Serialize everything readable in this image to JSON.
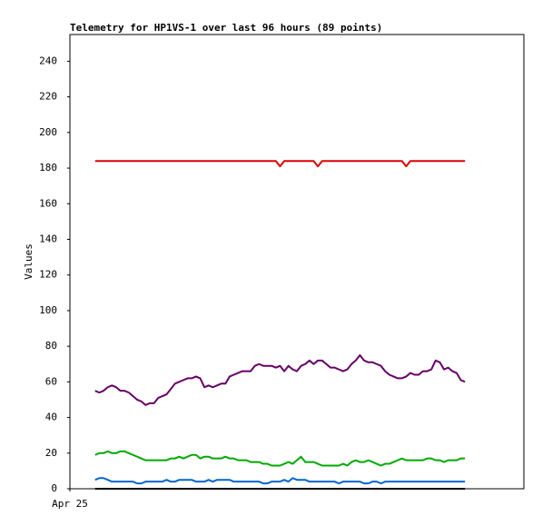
{
  "chart_data": {
    "type": "line",
    "title": "Telemetry for HP1VS-1 over last 96 hours (89 points)",
    "y_label": "Values",
    "x": [
      6,
      7,
      8,
      9,
      10,
      11,
      12,
      13,
      14,
      15,
      16,
      17,
      18,
      19,
      20,
      21,
      22,
      23,
      24,
      25,
      26,
      27,
      28,
      29,
      30,
      31,
      32,
      33,
      34,
      35,
      36,
      37,
      38,
      39,
      40,
      41,
      42,
      43,
      44,
      45,
      46,
      47,
      48,
      49,
      50,
      51,
      52,
      53,
      54,
      55,
      56,
      57,
      58,
      59,
      60,
      61,
      62,
      63,
      64,
      65,
      66,
      67,
      68,
      69,
      70,
      71,
      72,
      73,
      74,
      75,
      76,
      77,
      78,
      79,
      80,
      81,
      82,
      83,
      84,
      85,
      86,
      87,
      88,
      89,
      90,
      91,
      92,
      93,
      94
    ],
    "xlim": [
      0,
      108
    ],
    "xticks": [
      {
        "value": 0,
        "label": "Apr 25"
      }
    ],
    "ylim": [
      0,
      255
    ],
    "yticks": [
      0,
      20,
      40,
      60,
      80,
      100,
      120,
      140,
      160,
      180,
      200,
      220,
      240
    ],
    "series": [
      {
        "color": "#dd0000",
        "values": [
          184,
          184,
          184,
          184,
          184,
          184,
          184,
          184,
          184,
          184,
          184,
          184,
          184,
          184,
          184,
          184,
          184,
          184,
          184,
          184,
          184,
          184,
          184,
          184,
          184,
          184,
          184,
          184,
          184,
          184,
          184,
          184,
          184,
          184,
          184,
          184,
          184,
          184,
          184,
          184,
          184,
          184,
          184,
          184,
          181,
          184,
          184,
          184,
          184,
          184,
          184,
          184,
          184,
          181,
          184,
          184,
          184,
          184,
          184,
          184,
          184,
          184,
          184,
          184,
          184,
          184,
          184,
          184,
          184,
          184,
          184,
          184,
          184,
          184,
          181,
          184,
          184,
          184,
          184,
          184,
          184,
          184,
          184,
          184,
          184,
          184,
          184,
          184,
          184
        ]
      },
      {
        "color": "#660066",
        "values": [
          55,
          54,
          55,
          57,
          58,
          57,
          55,
          55,
          54,
          52,
          50,
          49,
          47,
          48,
          48,
          51,
          52,
          53,
          56,
          59,
          60,
          61,
          62,
          62,
          63,
          62,
          57,
          58,
          57,
          58,
          59,
          59,
          63,
          64,
          65,
          66,
          66,
          66,
          69,
          70,
          69,
          69,
          69,
          68,
          69,
          66,
          69,
          67,
          66,
          69,
          70,
          72,
          70,
          72,
          72,
          70,
          68,
          68,
          67,
          66,
          67,
          70,
          72,
          75,
          72,
          71,
          71,
          70,
          69,
          66,
          64,
          63,
          62,
          62,
          63,
          65,
          64,
          64,
          66,
          66,
          67,
          72,
          71,
          67,
          68,
          66,
          65,
          61,
          60
        ]
      },
      {
        "color": "#00aa00",
        "values": [
          19,
          20,
          20,
          21,
          20,
          20,
          21,
          21,
          20,
          19,
          18,
          17,
          16,
          16,
          16,
          16,
          16,
          16,
          17,
          17,
          18,
          17,
          18,
          19,
          19,
          17,
          18,
          18,
          17,
          17,
          17,
          18,
          17,
          17,
          16,
          16,
          16,
          15,
          15,
          15,
          14,
          14,
          13,
          13,
          13,
          14,
          15,
          14,
          16,
          18,
          15,
          15,
          15,
          14,
          13,
          13,
          13,
          13,
          13,
          14,
          13,
          15,
          16,
          15,
          15,
          16,
          15,
          14,
          13,
          14,
          14,
          15,
          16,
          17,
          16,
          16,
          16,
          16,
          16,
          17,
          17,
          16,
          16,
          15,
          16,
          16,
          16,
          17,
          17
        ]
      },
      {
        "color": "#0066cc",
        "values": [
          5,
          6,
          6,
          5,
          4,
          4,
          4,
          4,
          4,
          4,
          3,
          3,
          4,
          4,
          4,
          4,
          4,
          5,
          4,
          4,
          5,
          5,
          5,
          5,
          4,
          4,
          4,
          5,
          4,
          5,
          5,
          5,
          5,
          4,
          4,
          4,
          4,
          4,
          4,
          4,
          3,
          3,
          4,
          4,
          4,
          5,
          4,
          6,
          5,
          5,
          5,
          4,
          4,
          4,
          4,
          4,
          4,
          4,
          3,
          4,
          4,
          4,
          4,
          4,
          3,
          3,
          4,
          4,
          3,
          4,
          4,
          4,
          4,
          4,
          4,
          4,
          4,
          4,
          4,
          4,
          4,
          4,
          4,
          4,
          4,
          4,
          4,
          4,
          4
        ]
      },
      {
        "color": "#000000",
        "values": [
          0,
          0,
          0,
          0,
          0,
          0,
          0,
          0,
          0,
          0,
          0,
          0,
          0,
          0,
          0,
          0,
          0,
          0,
          0,
          0,
          0,
          0,
          0,
          0,
          0,
          0,
          0,
          0,
          0,
          0,
          0,
          0,
          0,
          0,
          0,
          0,
          0,
          0,
          0,
          0,
          0,
          0,
          0,
          0,
          0,
          0,
          0,
          0,
          0,
          0,
          0,
          0,
          0,
          0,
          0,
          0,
          0,
          0,
          0,
          0,
          0,
          0,
          0,
          0,
          0,
          0,
          0,
          0,
          0,
          0,
          0,
          0,
          0,
          0,
          0,
          0,
          0,
          0,
          0,
          0,
          0,
          0,
          0,
          0,
          0,
          0,
          0,
          0,
          0
        ]
      }
    ]
  }
}
